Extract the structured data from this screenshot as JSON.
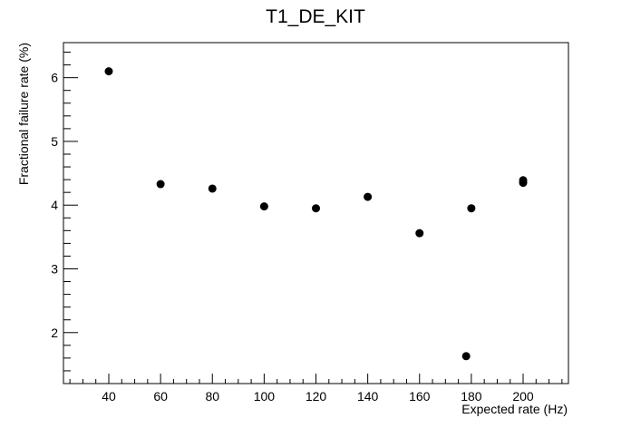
{
  "chart_data": {
    "type": "scatter",
    "title": "T1_DE_KIT",
    "xlabel": "Expected rate (Hz)",
    "ylabel": "Fractional failure rate (%)",
    "xlim": [
      22.5,
      217.5
    ],
    "ylim": [
      1.2,
      6.55
    ],
    "xticks": [
      40,
      60,
      80,
      100,
      120,
      140,
      160,
      180,
      200
    ],
    "yticks": [
      2,
      3,
      4,
      5,
      6
    ],
    "grid": false,
    "series": [
      {
        "x": [
          40,
          60,
          80,
          100,
          120,
          140,
          160,
          178,
          180,
          200,
          200
        ],
        "y": [
          6.1,
          4.33,
          4.26,
          3.98,
          3.95,
          4.13,
          3.56,
          1.63,
          3.95,
          4.39,
          4.35
        ]
      }
    ]
  }
}
